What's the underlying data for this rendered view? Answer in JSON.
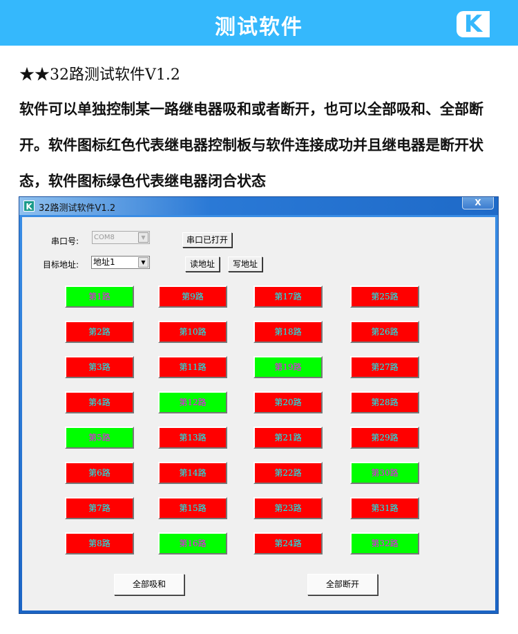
{
  "banner": {
    "title": "测试软件",
    "logo": "K"
  },
  "heading": "★★32路测试软件V1.2",
  "description": "软件可以单独控制某一路继电器吸和或者断开，也可以全部吸和、全部断开。软件图标红色代表继电器控制板与软件连接成功并且继电器是断开状态，软件图标绿色代表继电器闭合状态",
  "window": {
    "title": "32路测试软件V1.2",
    "icon": "K",
    "close_label": "X",
    "port_label": "串口号:",
    "port_value": "COM8",
    "port_button": "串口已打开",
    "addr_label": "目标地址:",
    "addr_value": "地址1",
    "read_button": "读地址",
    "write_button": "写地址",
    "all_on_button": "全部吸和",
    "all_off_button": "全部断开",
    "colors": {
      "on_bg": "#00ff00",
      "on_text": "#ff00ff",
      "off_bg": "#ff0000",
      "off_text": "#00ffff"
    },
    "relays": [
      {
        "label": "第1路",
        "on": true
      },
      {
        "label": "第2路",
        "on": false
      },
      {
        "label": "第3路",
        "on": false
      },
      {
        "label": "第4路",
        "on": false
      },
      {
        "label": "第5路",
        "on": true
      },
      {
        "label": "第6路",
        "on": false
      },
      {
        "label": "第7路",
        "on": false
      },
      {
        "label": "第8路",
        "on": false
      },
      {
        "label": "第9路",
        "on": false
      },
      {
        "label": "第10路",
        "on": false
      },
      {
        "label": "第11路",
        "on": false
      },
      {
        "label": "第12路",
        "on": true
      },
      {
        "label": "第13路",
        "on": false
      },
      {
        "label": "第14路",
        "on": false
      },
      {
        "label": "第15路",
        "on": false
      },
      {
        "label": "第16路",
        "on": true
      },
      {
        "label": "第17路",
        "on": false
      },
      {
        "label": "第18路",
        "on": false
      },
      {
        "label": "第19路",
        "on": true
      },
      {
        "label": "第20路",
        "on": false
      },
      {
        "label": "第21路",
        "on": false
      },
      {
        "label": "第22路",
        "on": false
      },
      {
        "label": "第23路",
        "on": false
      },
      {
        "label": "第24路",
        "on": false
      },
      {
        "label": "第25路",
        "on": false
      },
      {
        "label": "第26路",
        "on": false
      },
      {
        "label": "第27路",
        "on": false
      },
      {
        "label": "第28路",
        "on": false
      },
      {
        "label": "第29路",
        "on": false
      },
      {
        "label": "第30路",
        "on": true
      },
      {
        "label": "第31路",
        "on": false
      },
      {
        "label": "第32路",
        "on": true
      }
    ]
  }
}
